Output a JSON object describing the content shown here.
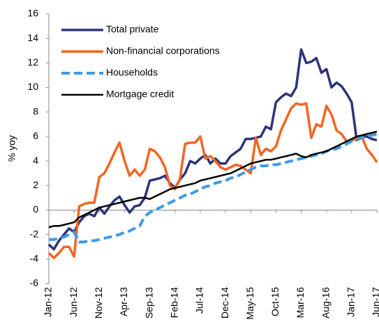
{
  "chart_data": {
    "type": "line",
    "ylabel": "% yoy",
    "categories": [
      "Jan-12",
      null,
      null,
      null,
      null,
      "Jun-12",
      null,
      null,
      null,
      null,
      "Nov-12",
      null,
      null,
      null,
      null,
      "Apr-13",
      null,
      null,
      null,
      null,
      "Sep-13",
      null,
      null,
      null,
      null,
      "Feb-14",
      null,
      null,
      null,
      null,
      "Jul-14",
      null,
      null,
      null,
      null,
      "Dec-14",
      null,
      null,
      null,
      null,
      "May-15",
      null,
      null,
      null,
      null,
      "Oct-15",
      null,
      null,
      null,
      null,
      "Mar-16",
      null,
      null,
      null,
      null,
      "Aug-16",
      null,
      null,
      null,
      null,
      "Jan-17",
      null,
      null,
      null,
      null,
      "Jun-17"
    ],
    "series": [
      {
        "name": "Total private",
        "color": "#2e3477",
        "style": "solid",
        "values": [
          -2.8,
          -3.2,
          -2.5,
          -2.0,
          -1.5,
          -1.8,
          -1.0,
          -0.5,
          -0.3,
          -0.5,
          0.2,
          -0.3,
          0.3,
          0.8,
          1.1,
          0.4,
          -0.2,
          0.3,
          0.4,
          1.0,
          2.4,
          2.5,
          2.6,
          2.8,
          2.2,
          1.8,
          2.5,
          3.0,
          4.0,
          3.8,
          4.2,
          4.5,
          3.8,
          4.2,
          3.8,
          3.8,
          4.4,
          4.7,
          5.0,
          5.8,
          5.8,
          5.9,
          6.0,
          6.8,
          6.6,
          8.8,
          9.2,
          9.5,
          9.3,
          10.0,
          13.1,
          12.0,
          12.1,
          12.4,
          11.2,
          11.5,
          10.0,
          10.4,
          10.1,
          9.5,
          8.8,
          5.7,
          6.0,
          6.0,
          5.8,
          5.7
        ]
      },
      {
        "name": "Non-financial corporations",
        "color": "#f26522",
        "style": "solid",
        "values": [
          -3.5,
          -3.9,
          -3.5,
          -3.0,
          -3.0,
          -3.8,
          0.3,
          0.5,
          0.6,
          0.6,
          2.7,
          3.0,
          3.8,
          4.7,
          5.5,
          4.0,
          2.8,
          3.3,
          2.8,
          3.3,
          5.0,
          4.8,
          4.3,
          3.5,
          2.0,
          1.7,
          2.6,
          5.4,
          5.5,
          5.5,
          6.0,
          4.2,
          4.4,
          4.0,
          3.5,
          3.3,
          3.5,
          3.7,
          3.6,
          3.3,
          3.0,
          5.9,
          4.5,
          5.0,
          4.8,
          5.2,
          6.5,
          7.4,
          8.3,
          8.7,
          8.6,
          8.7,
          5.9,
          7.0,
          6.8,
          8.5,
          7.8,
          6.5,
          6.2,
          5.6,
          5.7,
          5.8,
          6.0,
          5.0,
          4.5,
          3.9
        ]
      },
      {
        "name": "Households",
        "color": "#3c9be8",
        "style": "dashed",
        "values": [
          -2.4,
          -2.4,
          -2.3,
          -2.2,
          -2.0,
          -1.8,
          -2.6,
          -2.6,
          -2.5,
          -2.5,
          -2.4,
          -2.3,
          -2.2,
          -2.1,
          -2.0,
          -1.8,
          -1.7,
          -1.5,
          -1.3,
          -0.5,
          -0.2,
          0,
          0.2,
          0.4,
          0.6,
          0.8,
          1.0,
          1.2,
          1.3,
          1.5,
          1.7,
          1.9,
          2.0,
          2.2,
          2.3,
          2.4,
          2.6,
          2.7,
          2.9,
          3.1,
          3.3,
          3.5,
          3.6,
          3.6,
          3.7,
          3.7,
          3.8,
          3.9,
          4.0,
          4.1,
          4.2,
          4.3,
          4.4,
          4.5,
          4.6,
          4.8,
          4.9,
          5.0,
          5.2,
          5.4,
          5.6,
          5.7,
          5.9,
          6.0,
          6.1,
          6.2
        ]
      },
      {
        "name": "Mortgage credit",
        "color": "#000000",
        "style": "solid",
        "values": [
          -1.4,
          -1.3,
          -1.3,
          -1.2,
          -1.1,
          -1.0,
          -0.6,
          -0.4,
          -0.2,
          0,
          0.2,
          0.3,
          0.4,
          0.5,
          0.6,
          0.7,
          0.8,
          0.9,
          1.0,
          1.0,
          0.9,
          1.1,
          1.3,
          1.5,
          1.7,
          1.8,
          1.9,
          2.0,
          2.1,
          2.2,
          2.4,
          2.5,
          2.6,
          2.7,
          2.8,
          2.9,
          3.0,
          3.2,
          3.4,
          3.6,
          3.8,
          3.9,
          4.0,
          4.1,
          4.1,
          4.2,
          4.3,
          4.4,
          4.5,
          4.6,
          4.4,
          4.3,
          4.5,
          4.6,
          4.7,
          4.8,
          5.0,
          5.2,
          5.4,
          5.6,
          5.8,
          6.0,
          6.1,
          6.2,
          6.3,
          6.4
        ]
      }
    ],
    "ylim": [
      -6,
      16
    ],
    "yticks": [
      -6,
      -4,
      -2,
      0,
      2,
      4,
      6,
      8,
      10,
      12,
      14,
      16
    ],
    "grid": false,
    "legend": "upper-left"
  }
}
